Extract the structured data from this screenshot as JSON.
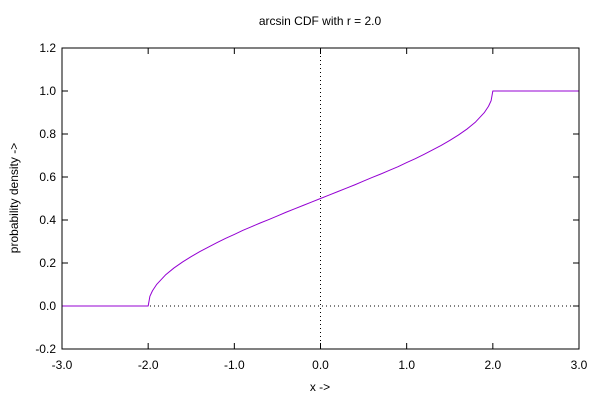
{
  "chart_data": {
    "type": "line",
    "title": "arcsin CDF with r = 2.0",
    "xlabel": "x ->",
    "ylabel": "probability density ->",
    "xlim": [
      -3.0,
      3.0
    ],
    "ylim": [
      -0.2,
      1.2
    ],
    "x_ticks": [
      -3.0,
      -2.0,
      -1.0,
      0.0,
      1.0,
      2.0,
      3.0
    ],
    "x_tick_labels": [
      "-3.0",
      "-2.0",
      "-1.0",
      "0.0",
      "1.0",
      "2.0",
      "3.0"
    ],
    "y_ticks": [
      -0.2,
      0.0,
      0.2,
      0.4,
      0.6,
      0.8,
      1.0,
      1.2
    ],
    "y_tick_labels": [
      "-0.2",
      "0.0",
      "0.2",
      "0.4",
      "0.6",
      "0.8",
      "1.0",
      "1.2"
    ],
    "grid": false,
    "zero_axes": "dotted",
    "line_color": "#9400d3",
    "series": [
      {
        "x": [
          -3.0,
          -2.0,
          -1.98,
          -1.95,
          -1.9,
          -1.8,
          -1.7,
          -1.6,
          -1.5,
          -1.4,
          -1.3,
          -1.2,
          -1.1,
          -1.0,
          -0.9,
          -0.8,
          -0.7,
          -0.6,
          -0.5,
          -0.4,
          -0.3,
          -0.2,
          -0.1,
          0.0,
          0.1,
          0.2,
          0.3,
          0.4,
          0.5,
          0.6,
          0.7,
          0.8,
          0.9,
          1.0,
          1.1,
          1.2,
          1.3,
          1.4,
          1.5,
          1.6,
          1.7,
          1.8,
          1.9,
          1.95,
          1.98,
          2.0,
          3.0
        ],
        "y": [
          0.0,
          0.0,
          0.045,
          0.071,
          0.101,
          0.144,
          0.177,
          0.205,
          0.23,
          0.253,
          0.274,
          0.295,
          0.315,
          0.333,
          0.352,
          0.369,
          0.386,
          0.402,
          0.419,
          0.436,
          0.452,
          0.468,
          0.484,
          0.5,
          0.516,
          0.532,
          0.548,
          0.564,
          0.581,
          0.598,
          0.614,
          0.631,
          0.648,
          0.667,
          0.685,
          0.705,
          0.726,
          0.747,
          0.77,
          0.795,
          0.823,
          0.856,
          0.899,
          0.929,
          0.955,
          1.0,
          1.0
        ]
      }
    ]
  }
}
